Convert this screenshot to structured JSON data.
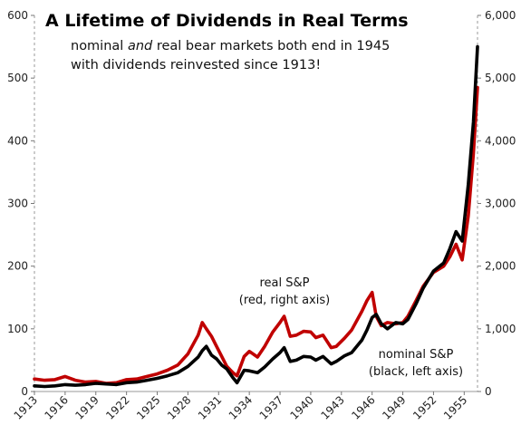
{
  "chart_data": {
    "type": "line",
    "title": "A Lifetime of Dividends in Real Terms",
    "subtitle_line1_pre": "nominal ",
    "subtitle_line1_em": "and",
    "subtitle_line1_post": " real bear markets both end in 1945",
    "subtitle_line2": "with dividends reinvested since 1913!",
    "x_ticks": [
      "1913",
      "1916",
      "1919",
      "1922",
      "1925",
      "1928",
      "1931",
      "1934",
      "1937",
      "1940",
      "1943",
      "1946",
      "1949",
      "1952",
      "1955"
    ],
    "xlim": [
      1913,
      1956.3
    ],
    "y_left": {
      "ylim": [
        0,
        600
      ],
      "ticks": [
        "0",
        "100",
        "200",
        "300",
        "400",
        "500",
        "600"
      ]
    },
    "y_right": {
      "ylim": [
        0,
        6000
      ],
      "ticks": [
        "0",
        "1,000",
        "2,000",
        "3,000",
        "4,000",
        "5,000",
        "6,000"
      ]
    },
    "annotations": {
      "real_line1": "real S&P",
      "real_line2": "(red, right axis)",
      "nominal_line1": "nominal S&P",
      "nominal_line2": "(black, left axis)"
    },
    "colors": {
      "real": "#c00000",
      "nominal": "#000000"
    },
    "series": [
      {
        "name": "nominal S&P",
        "axis": "left",
        "x": [
          1913,
          1914,
          1915,
          1916,
          1917,
          1918,
          1919,
          1920,
          1921,
          1922,
          1923,
          1924,
          1925,
          1926,
          1927,
          1928,
          1929.0,
          1929.4,
          1929.8,
          1930.3,
          1930.8,
          1931.3,
          1931.8,
          1932.4,
          1932.8,
          1933.5,
          1934.0,
          1934.8,
          1935.5,
          1936.3,
          1937.0,
          1937.4,
          1938.0,
          1938.6,
          1939.3,
          1940.0,
          1940.5,
          1941.2,
          1942.0,
          1942.5,
          1943.3,
          1944.0,
          1945.0,
          1945.5,
          1946.0,
          1946.4,
          1946.9,
          1947.5,
          1948.3,
          1949.0,
          1949.5,
          1950.3,
          1951.0,
          1952.0,
          1953.0,
          1953.6,
          1954.2,
          1954.8,
          1955.4,
          1955.9,
          1956.3
        ],
        "y": [
          9,
          8,
          9,
          11,
          10,
          11,
          13,
          12,
          11,
          14,
          15,
          18,
          21,
          25,
          30,
          40,
          55,
          65,
          72,
          58,
          52,
          42,
          36,
          22,
          14,
          34,
          33,
          30,
          39,
          52,
          62,
          70,
          48,
          50,
          56,
          55,
          50,
          56,
          44,
          48,
          57,
          62,
          82,
          98,
          118,
          123,
          108,
          100,
          110,
          108,
          115,
          140,
          165,
          192,
          205,
          228,
          255,
          240,
          330,
          430,
          550
        ]
      },
      {
        "name": "real S&P",
        "axis": "right",
        "x": [
          1913,
          1914,
          1915,
          1916,
          1917,
          1918,
          1919,
          1920,
          1921,
          1922,
          1923,
          1924,
          1925,
          1926,
          1927,
          1928,
          1929.0,
          1929.4,
          1929.8,
          1930.3,
          1930.8,
          1931.3,
          1931.8,
          1932.4,
          1932.8,
          1933.5,
          1934.0,
          1934.8,
          1935.5,
          1936.3,
          1937.0,
          1937.4,
          1938.0,
          1938.6,
          1939.3,
          1940.0,
          1940.5,
          1941.2,
          1942.0,
          1942.5,
          1943.3,
          1944.0,
          1945.0,
          1945.5,
          1946.0,
          1946.4,
          1946.9,
          1947.5,
          1948.3,
          1949.0,
          1949.5,
          1950.3,
          1951.0,
          1952.0,
          1953.0,
          1953.6,
          1954.2,
          1954.8,
          1955.4,
          1955.9,
          1956.3
        ],
        "y": [
          200,
          180,
          190,
          240,
          180,
          150,
          160,
          130,
          140,
          190,
          200,
          240,
          280,
          340,
          420,
          600,
          900,
          1100,
          1000,
          880,
          720,
          560,
          400,
          300,
          250,
          560,
          640,
          550,
          720,
          950,
          1100,
          1200,
          880,
          900,
          960,
          950,
          860,
          900,
          700,
          720,
          850,
          980,
          1280,
          1450,
          1580,
          1200,
          1050,
          1100,
          1080,
          1100,
          1200,
          1450,
          1680,
          1900,
          2000,
          2150,
          2350,
          2100,
          2800,
          3800,
          4850
        ]
      }
    ]
  }
}
